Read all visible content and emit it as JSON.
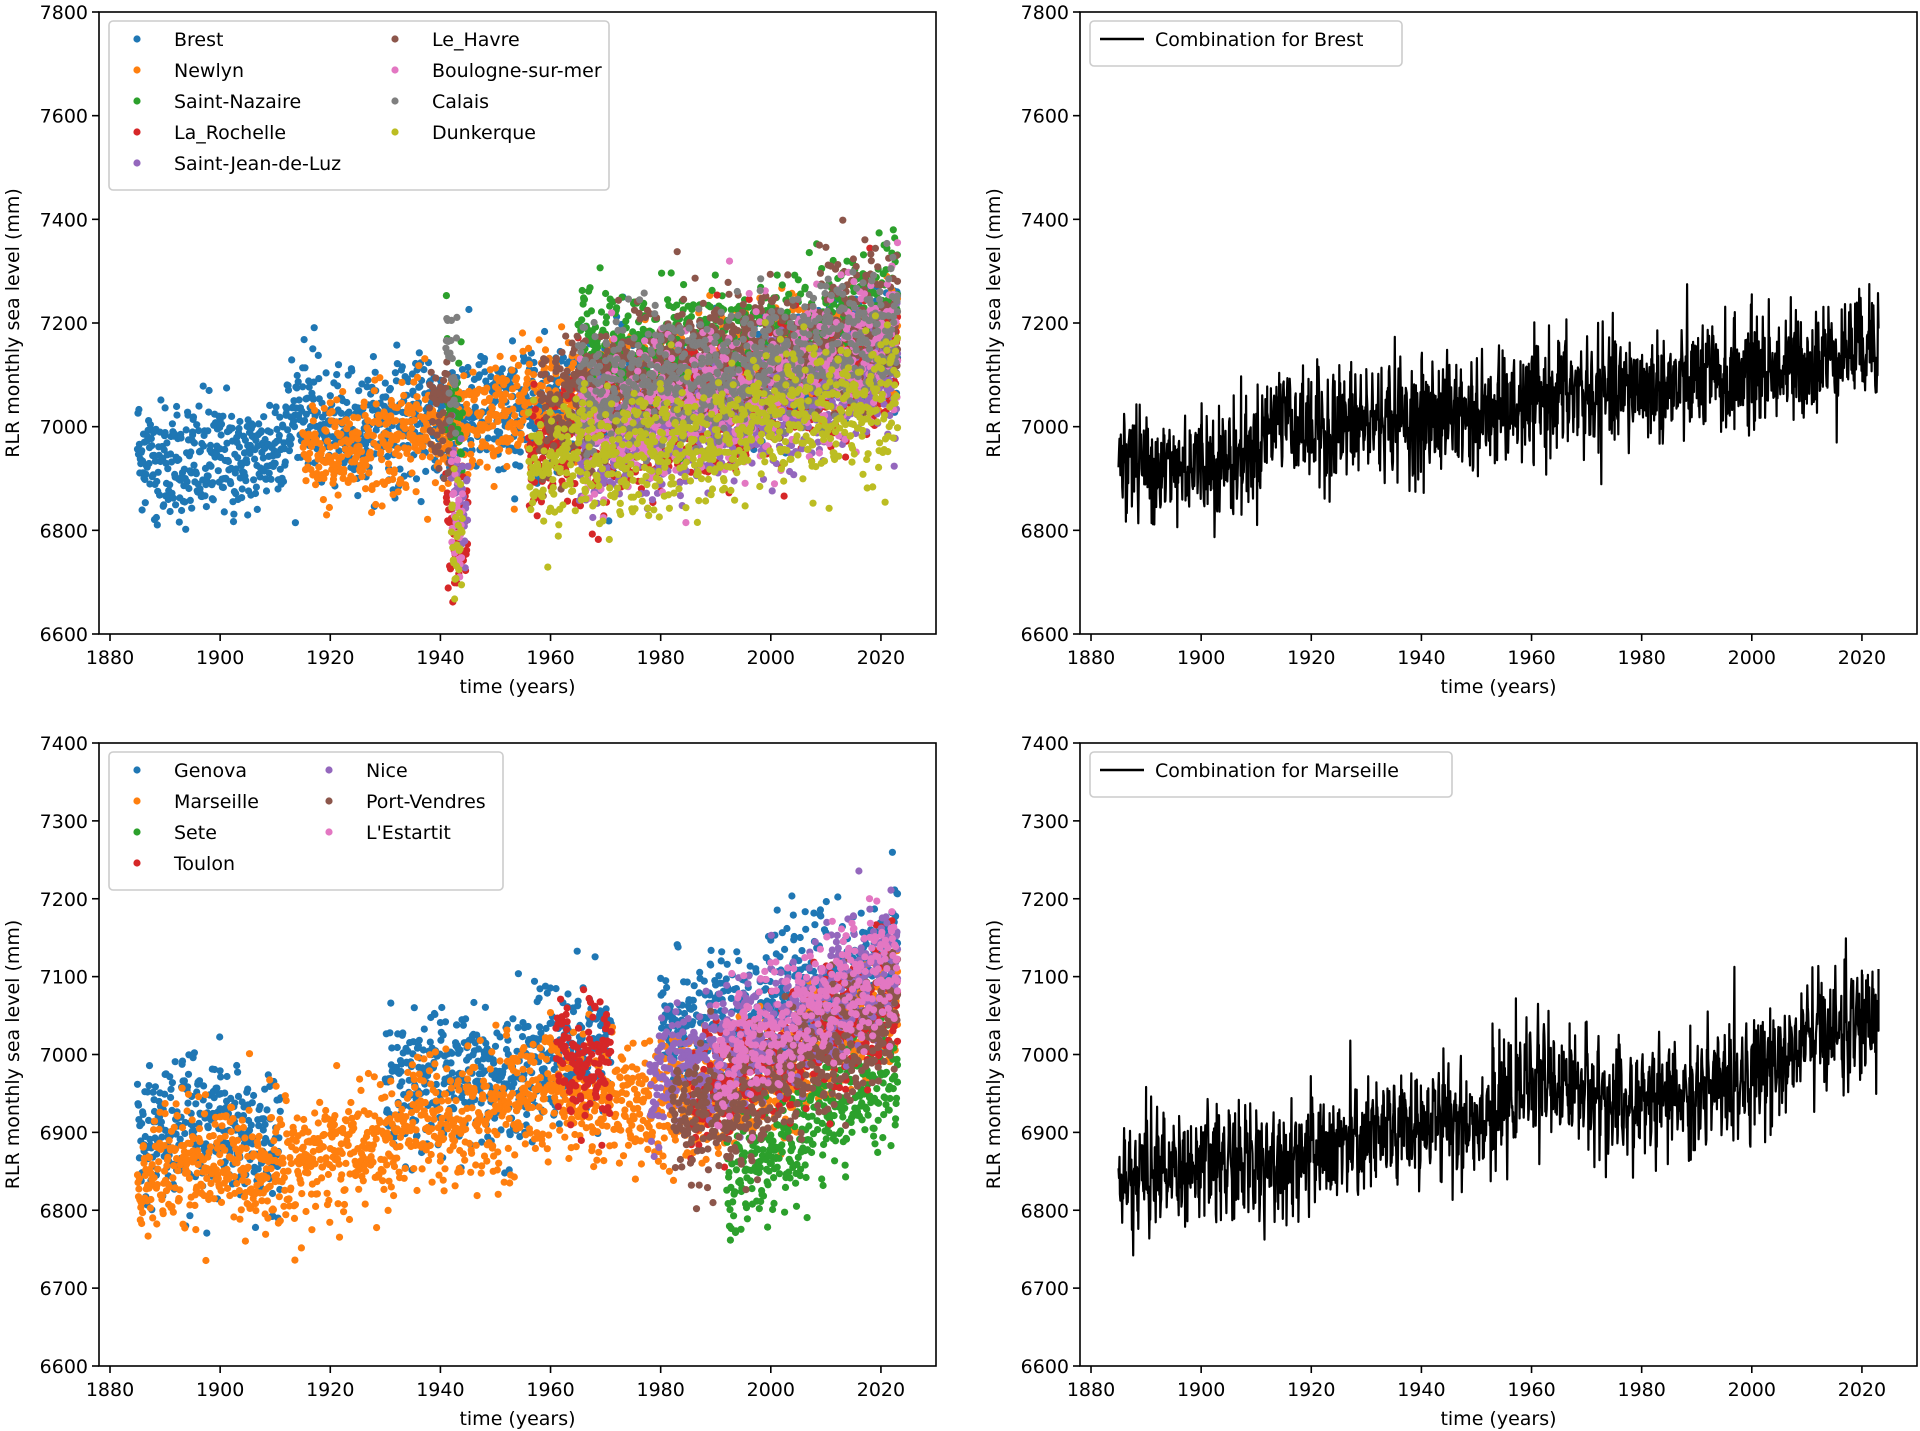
{
  "chart_data": [
    {
      "id": "atlantic-stations",
      "type": "scatter",
      "panel": "top-left",
      "title": "",
      "xlabel": "time (years)",
      "ylabel": "RLR monthly sea level (mm)",
      "xlim": [
        1878,
        2030
      ],
      "ylim": [
        6600,
        7800
      ],
      "xticks": [
        1880,
        1900,
        1920,
        1940,
        1960,
        1980,
        2000,
        2020
      ],
      "yticks": [
        6600,
        6800,
        7000,
        7200,
        7400,
        7600,
        7800
      ],
      "grid": false,
      "legend": {
        "placement": "top-left",
        "columns": 2
      },
      "series": [
        {
          "name": "Brest",
          "color": "#1f77b4",
          "monthly_spread_mm": 90,
          "x": [
            1885,
            1890,
            1895,
            1900,
            1905,
            1910,
            1912,
            1915,
            1920,
            1925,
            1930,
            1935,
            1940,
            1945,
            1950,
            1955,
            1960,
            1965,
            1970,
            1975,
            1980,
            1985,
            1990,
            1995,
            2000,
            2005,
            2010,
            2015,
            2020,
            2023
          ],
          "y": [
            6950,
            6930,
            6920,
            6940,
            6930,
            6960,
            7000,
            7040,
            6990,
            7000,
            7010,
            7020,
            7010,
            7030,
            7020,
            7030,
            7040,
            7070,
            7060,
            7060,
            7080,
            7070,
            7090,
            7090,
            7110,
            7110,
            7120,
            7140,
            7160,
            7170
          ]
        },
        {
          "name": "Newlyn",
          "color": "#ff7f0e",
          "monthly_spread_mm": 80,
          "x": [
            1915,
            1920,
            1925,
            1930,
            1935,
            1940,
            1945,
            1950,
            1955,
            1960,
            1965,
            1970,
            1975,
            1980,
            1985,
            1990,
            1995,
            2000,
            2005,
            2010,
            2015,
            2020,
            2023
          ],
          "y": [
            6950,
            6940,
            6960,
            6970,
            6990,
            6980,
            7010,
            7030,
            7040,
            7050,
            7060,
            7060,
            7070,
            7080,
            7090,
            7100,
            7110,
            7120,
            7130,
            7140,
            7150,
            7160,
            7170
          ]
        },
        {
          "name": "Saint-Nazaire",
          "color": "#2ca02c",
          "monthly_spread_mm": 100,
          "x": [
            1941,
            1942,
            1943,
            1965,
            1970,
            1975,
            1980,
            1985,
            1990,
            1995,
            2000,
            2005,
            2010,
            2015,
            2020,
            2023
          ],
          "y": [
            7060,
            7020,
            7000,
            7150,
            7120,
            7130,
            7150,
            7140,
            7150,
            7160,
            7170,
            7180,
            7190,
            7220,
            7230,
            7240
          ]
        },
        {
          "name": "La_Rochelle",
          "color": "#d62728",
          "monthly_spread_mm": 100,
          "x": [
            1941,
            1942,
            1943,
            1944,
            1956,
            1960,
            1965,
            1970,
            1975,
            1980,
            1985,
            1990,
            1995,
            2000,
            2005,
            2010,
            2015,
            2020,
            2023
          ],
          "y": [
            6860,
            6820,
            6800,
            6790,
            6920,
            6950,
            6990,
            6980,
            6990,
            7000,
            7020,
            7030,
            7050,
            7060,
            7060,
            7080,
            7100,
            7110,
            7120
          ]
        },
        {
          "name": "Saint-Jean-de-Luz",
          "color": "#9467bd",
          "monthly_spread_mm": 90,
          "x": [
            1942,
            1943,
            1944,
            1965,
            1970,
            1975,
            1980,
            1985,
            1990,
            1995,
            2000,
            2005,
            2010,
            2015,
            2020,
            2023
          ],
          "y": [
            6900,
            6880,
            6850,
            6960,
            6970,
            6980,
            6990,
            7000,
            7000,
            7010,
            7030,
            7050,
            7060,
            7080,
            7100,
            7110
          ]
        },
        {
          "name": "Le_Havre",
          "color": "#8c564b",
          "monthly_spread_mm": 100,
          "x": [
            1938,
            1939,
            1940,
            1941,
            1958,
            1960,
            1965,
            1970,
            1975,
            1980,
            1985,
            1990,
            1995,
            2000,
            2005,
            2010,
            2015,
            2020,
            2023
          ],
          "y": [
            7060,
            7040,
            7010,
            6990,
            7000,
            7020,
            7060,
            7080,
            7090,
            7110,
            7120,
            7130,
            7140,
            7150,
            7160,
            7170,
            7190,
            7200,
            7210
          ]
        },
        {
          "name": "Boulogne-sur-mer",
          "color": "#e377c2",
          "monthly_spread_mm": 110,
          "x": [
            1942,
            1943,
            1965,
            1970,
            1975,
            1980,
            1985,
            1990,
            1995,
            2000,
            2005,
            2010,
            2015,
            2020,
            2023
          ],
          "y": [
            6850,
            6820,
            6990,
            7010,
            7020,
            7030,
            7040,
            7050,
            7070,
            7090,
            7100,
            7110,
            7130,
            7160,
            7180
          ]
        },
        {
          "name": "Calais",
          "color": "#7f7f7f",
          "monthly_spread_mm": 100,
          "x": [
            1941,
            1942,
            1965,
            1970,
            1975,
            1980,
            1985,
            1990,
            1995,
            2000,
            2005,
            2010,
            2015,
            2020,
            2023
          ],
          "y": [
            7120,
            7080,
            7060,
            7070,
            7080,
            7080,
            7090,
            7100,
            7110,
            7130,
            7140,
            7150,
            7170,
            7190,
            7200
          ]
        },
        {
          "name": "Dunkerque",
          "color": "#bcbd22",
          "monthly_spread_mm": 100,
          "x": [
            1942,
            1943,
            1956,
            1960,
            1965,
            1970,
            1975,
            1980,
            1985,
            1990,
            1995,
            2000,
            2005,
            2010,
            2015,
            2020,
            2023
          ],
          "y": [
            6820,
            6780,
            6920,
            6930,
            6950,
            6940,
            6950,
            6960,
            6960,
            6960,
            6990,
            7010,
            7010,
            7020,
            7040,
            7060,
            7070
          ]
        }
      ]
    },
    {
      "id": "combination-brest",
      "type": "line",
      "panel": "top-right",
      "title": "",
      "xlabel": "time (years)",
      "ylabel": "RLR monthly sea level (mm)",
      "xlim": [
        1878,
        2030
      ],
      "ylim": [
        6600,
        7800
      ],
      "xticks": [
        1880,
        1900,
        1920,
        1940,
        1960,
        1980,
        2000,
        2020
      ],
      "yticks": [
        6600,
        6800,
        7000,
        7200,
        7400,
        7600,
        7800
      ],
      "grid": false,
      "legend": {
        "placement": "top-left",
        "columns": 1
      },
      "series": [
        {
          "name": "Combination for Brest",
          "color": "#000000",
          "monthly_spread_mm": 85,
          "x": [
            1885,
            1890,
            1895,
            1900,
            1905,
            1910,
            1912,
            1915,
            1920,
            1925,
            1930,
            1935,
            1940,
            1945,
            1950,
            1955,
            1960,
            1965,
            1970,
            1975,
            1980,
            1985,
            1990,
            1995,
            2000,
            2005,
            2010,
            2015,
            2020,
            2023
          ],
          "y": [
            6950,
            6925,
            6920,
            6935,
            6930,
            6960,
            7000,
            7030,
            6990,
            7000,
            7010,
            7020,
            7010,
            7030,
            7020,
            7030,
            7040,
            7070,
            7060,
            7060,
            7080,
            7070,
            7090,
            7090,
            7110,
            7110,
            7120,
            7140,
            7160,
            7180
          ]
        }
      ]
    },
    {
      "id": "mediterranean-stations",
      "type": "scatter",
      "panel": "bottom-left",
      "title": "",
      "xlabel": "time (years)",
      "ylabel": "RLR monthly sea level (mm)",
      "xlim": [
        1878,
        2030
      ],
      "ylim": [
        6600,
        7400
      ],
      "xticks": [
        1880,
        1900,
        1920,
        1940,
        1960,
        1980,
        2000,
        2020
      ],
      "yticks": [
        6600,
        6700,
        6800,
        6900,
        7000,
        7100,
        7200,
        7300,
        7400
      ],
      "grid": false,
      "legend": {
        "placement": "top-left",
        "columns": 2
      },
      "series": [
        {
          "name": "Genova",
          "color": "#1f77b4",
          "monthly_spread_mm": 65,
          "x": [
            1885,
            1890,
            1895,
            1900,
            1905,
            1910,
            1930,
            1935,
            1940,
            1945,
            1950,
            1955,
            1960,
            1965,
            1970,
            1980,
            1985,
            1990,
            1995,
            2000,
            2005,
            2010,
            2015,
            2020,
            2023
          ],
          "y": [
            6890,
            6900,
            6910,
            6910,
            6890,
            6880,
            6960,
            6970,
            6960,
            6980,
            6970,
            6980,
            7000,
            7000,
            7000,
            7030,
            7030,
            7040,
            7060,
            7060,
            7080,
            7090,
            7100,
            7120,
            7130
          ]
        },
        {
          "name": "Marseille",
          "color": "#ff7f0e",
          "monthly_spread_mm": 60,
          "x": [
            1885,
            1890,
            1895,
            1900,
            1905,
            1910,
            1915,
            1920,
            1925,
            1930,
            1935,
            1940,
            1945,
            1950,
            1955,
            1960,
            1965,
            1970,
            1975,
            1980,
            1985,
            1990,
            1995,
            2000,
            2005,
            2010,
            2015,
            2020,
            2023
          ],
          "y": [
            6830,
            6850,
            6860,
            6860,
            6850,
            6860,
            6860,
            6870,
            6880,
            6880,
            6910,
            6910,
            6920,
            6920,
            6940,
            6960,
            6950,
            6940,
            6940,
            6940,
            6940,
            6950,
            6960,
            6970,
            6980,
            7020,
            7030,
            7050,
            7060
          ]
        },
        {
          "name": "Sete",
          "color": "#2ca02c",
          "monthly_spread_mm": 60,
          "x": [
            1992,
            1995,
            2000,
            2005,
            2010,
            2015,
            2020,
            2023
          ],
          "y": [
            6820,
            6850,
            6870,
            6890,
            6920,
            6940,
            6960,
            6980
          ]
        },
        {
          "name": "Toulon",
          "color": "#d62728",
          "monthly_spread_mm": 55,
          "x": [
            1961,
            1962,
            1963,
            1964,
            1965,
            1966,
            1967,
            1968,
            1969,
            1970,
            1985,
            1990,
            1995,
            2000,
            2005,
            2010,
            2015,
            2020,
            2023
          ],
          "y": [
            6990,
            7000,
            6990,
            6980,
            6980,
            6990,
            7000,
            6990,
            7000,
            6990,
            6940,
            6960,
            6980,
            7000,
            7010,
            7030,
            7040,
            7060,
            7070
          ]
        },
        {
          "name": "Nice",
          "color": "#9467bd",
          "monthly_spread_mm": 60,
          "x": [
            1978,
            1980,
            1985,
            1990,
            1995,
            2000,
            2005,
            2010,
            2015,
            2020,
            2023
          ],
          "y": [
            6950,
            6980,
            6990,
            7000,
            7020,
            7030,
            7040,
            7060,
            7080,
            7100,
            7110
          ]
        },
        {
          "name": "Port-Vendres",
          "color": "#8c564b",
          "monthly_spread_mm": 60,
          "x": [
            1982,
            1985,
            1990,
            1995,
            2000,
            2005,
            2010,
            2015,
            2020,
            2023
          ],
          "y": [
            6930,
            6920,
            6910,
            6930,
            6960,
            6980,
            7000,
            7020,
            7040,
            7060
          ]
        },
        {
          "name": "L'Estartit",
          "color": "#e377c2",
          "monthly_spread_mm": 60,
          "x": [
            1990,
            1995,
            2000,
            2005,
            2010,
            2015,
            2020,
            2023
          ],
          "y": [
            6990,
            7020,
            7030,
            7050,
            7070,
            7090,
            7100,
            7110
          ]
        }
      ]
    },
    {
      "id": "combination-marseille",
      "type": "line",
      "panel": "bottom-right",
      "title": "",
      "xlabel": "time (years)",
      "ylabel": "RLR monthly sea level (mm)",
      "xlim": [
        1878,
        2030
      ],
      "ylim": [
        6600,
        7400
      ],
      "xticks": [
        1880,
        1900,
        1920,
        1940,
        1960,
        1980,
        2000,
        2020
      ],
      "yticks": [
        6600,
        6700,
        6800,
        6900,
        7000,
        7100,
        7200,
        7300,
        7400
      ],
      "grid": false,
      "legend": {
        "placement": "top-left",
        "columns": 1
      },
      "series": [
        {
          "name": "Combination for Marseille",
          "color": "#000000",
          "monthly_spread_mm": 55,
          "x": [
            1885,
            1890,
            1895,
            1900,
            1905,
            1910,
            1915,
            1920,
            1925,
            1930,
            1935,
            1940,
            1945,
            1950,
            1955,
            1960,
            1965,
            1970,
            1975,
            1980,
            1985,
            1990,
            1995,
            2000,
            2005,
            2010,
            2015,
            2020,
            2023
          ],
          "y": [
            6830,
            6850,
            6855,
            6860,
            6860,
            6860,
            6870,
            6870,
            6880,
            6890,
            6900,
            6910,
            6915,
            6920,
            6930,
            6970,
            6960,
            6960,
            6930,
            6940,
            6945,
            6950,
            6960,
            6980,
            6990,
            7020,
            7030,
            7040,
            7050
          ]
        }
      ]
    }
  ]
}
